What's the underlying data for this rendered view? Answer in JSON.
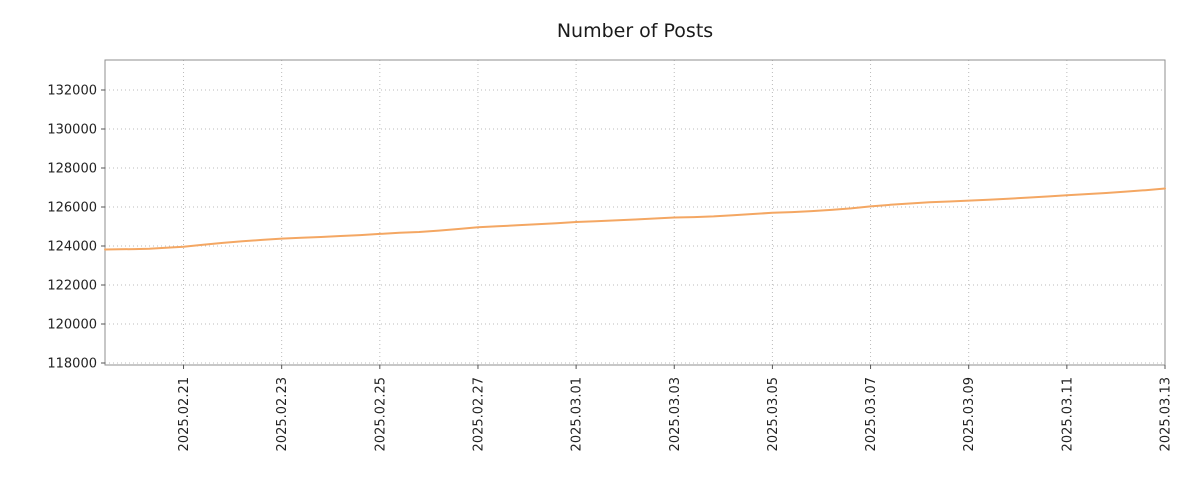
{
  "chart_data": {
    "type": "line",
    "title": "Number of Posts",
    "xlabel": "",
    "ylabel": "",
    "grid": "dotted",
    "legend": "none",
    "xlim": [
      0,
      21.6
    ],
    "ylim": [
      117897,
      133538
    ],
    "y_ticks": [
      118000,
      120000,
      122000,
      124000,
      126000,
      128000,
      130000,
      132000
    ],
    "x_ticks": [
      {
        "pos": 1.6,
        "label": "2025.02.21"
      },
      {
        "pos": 3.6,
        "label": "2025.02.23"
      },
      {
        "pos": 5.6,
        "label": "2025.02.25"
      },
      {
        "pos": 7.6,
        "label": "2025.02.27"
      },
      {
        "pos": 9.6,
        "label": "2025.03.01"
      },
      {
        "pos": 11.6,
        "label": "2025.03.03"
      },
      {
        "pos": 13.6,
        "label": "2025.03.05"
      },
      {
        "pos": 15.6,
        "label": "2025.03.07"
      },
      {
        "pos": 17.6,
        "label": "2025.03.09"
      },
      {
        "pos": 19.6,
        "label": "2025.03.11"
      },
      {
        "pos": 21.6,
        "label": "2025.03.13"
      }
    ],
    "series": [
      {
        "name": "Number of Posts",
        "color": "#f4a763",
        "x": [
          0,
          0.3,
          0.6,
          0.9,
          1.2,
          1.6,
          2.0,
          2.4,
          2.8,
          3.2,
          3.6,
          4.0,
          4.4,
          4.8,
          5.2,
          5.6,
          6.0,
          6.4,
          6.8,
          7.2,
          7.6,
          8.0,
          8.4,
          8.8,
          9.2,
          9.6,
          10.0,
          10.4,
          10.8,
          11.2,
          11.6,
          12.0,
          12.4,
          12.8,
          13.2,
          13.6,
          14.0,
          14.4,
          14.8,
          15.2,
          15.6,
          16.0,
          16.4,
          16.8,
          17.2,
          17.6,
          18.0,
          18.4,
          18.8,
          19.2,
          19.6,
          20.0,
          20.4,
          20.8,
          21.2,
          21.6
        ],
        "values": [
          123820,
          123830,
          123840,
          123860,
          123900,
          123960,
          124060,
          124160,
          124240,
          124310,
          124380,
          124420,
          124460,
          124510,
          124560,
          124620,
          124680,
          124720,
          124790,
          124870,
          124960,
          125010,
          125060,
          125110,
          125170,
          125230,
          125270,
          125310,
          125360,
          125410,
          125460,
          125480,
          125520,
          125580,
          125640,
          125700,
          125740,
          125790,
          125850,
          125930,
          126030,
          126110,
          126180,
          126240,
          126280,
          126330,
          126370,
          126420,
          126480,
          126540,
          126600,
          126660,
          126720,
          126790,
          126860,
          126950
        ]
      }
    ]
  }
}
